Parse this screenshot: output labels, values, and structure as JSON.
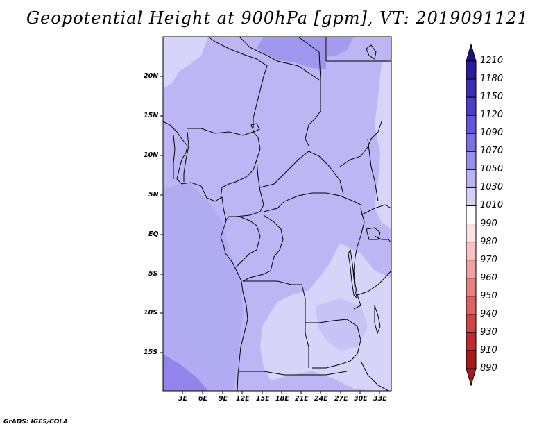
{
  "title": "Geopotential Height at 900hPa [gpm], VT: 2019091121",
  "credit": "GrADS: IGES/COLA",
  "map": {
    "lon_ticks": [
      "3E",
      "6E",
      "9E",
      "12E",
      "15E",
      "18E",
      "21E",
      "24E",
      "27E",
      "30E",
      "33E"
    ],
    "lat_ticks": [
      "20N",
      "15N",
      "10N",
      "5N",
      "EQ",
      "5S",
      "10S",
      "15S"
    ]
  },
  "colorbar": {
    "levels": [
      "1210",
      "1180",
      "1150",
      "1120",
      "1090",
      "1070",
      "1050",
      "1030",
      "1010",
      "990",
      "980",
      "970",
      "960",
      "950",
      "940",
      "930",
      "910",
      "890"
    ],
    "colors": [
      "#1a1080",
      "#2a1ea0",
      "#3a30b8",
      "#4a40c8",
      "#6058d8",
      "#7a70e2",
      "#9690ea",
      "#b8b2f2",
      "#d4d0f8",
      "#ffffff",
      "#fbe1e1",
      "#f6c2c2",
      "#f0a2a2",
      "#e88282",
      "#de6262",
      "#d04444",
      "#c02a2a",
      "#a81818"
    ]
  },
  "palette": {
    "light": "#d6d4f8",
    "mid": "#bcb6f4",
    "dark": "#a59cf0",
    "darker": "#9284ea",
    "border": "#000000"
  }
}
